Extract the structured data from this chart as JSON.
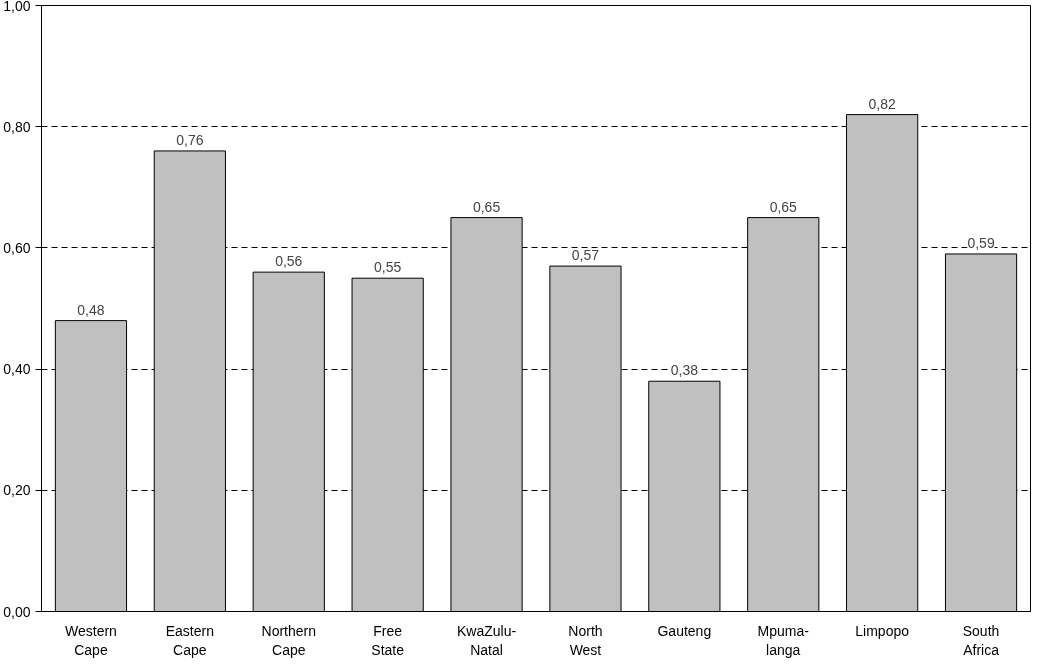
{
  "chart_data": {
    "type": "bar",
    "categories": [
      "Western\nCape",
      "Eastern\nCape",
      "Northern\nCape",
      "Free\nState",
      "KwaZulu-\nNatal",
      "North\nWest",
      "Gauteng",
      "Mpuma-\nlanga",
      "Limpopo",
      "South\nAfrica"
    ],
    "values": [
      0.48,
      0.76,
      0.56,
      0.55,
      0.65,
      0.57,
      0.38,
      0.65,
      0.82,
      0.59
    ],
    "value_labels": [
      "0,48",
      "0,76",
      "0,56",
      "0,55",
      "0,65",
      "0,57",
      "0,38",
      "0,65",
      "0,82",
      "0,59"
    ],
    "color": "#c0c0c0",
    "ylim": [
      0,
      1
    ],
    "yticks": [
      {
        "value": 0,
        "label": "0,00"
      },
      {
        "value": 0.2,
        "label": "0,20"
      },
      {
        "value": 0.4,
        "label": "0,40"
      },
      {
        "value": 0.6,
        "label": "0,60"
      },
      {
        "value": 0.8,
        "label": "0,80"
      },
      {
        "value": 1,
        "label": "1,00"
      }
    ],
    "grid": "y",
    "line_style": "dashed"
  }
}
